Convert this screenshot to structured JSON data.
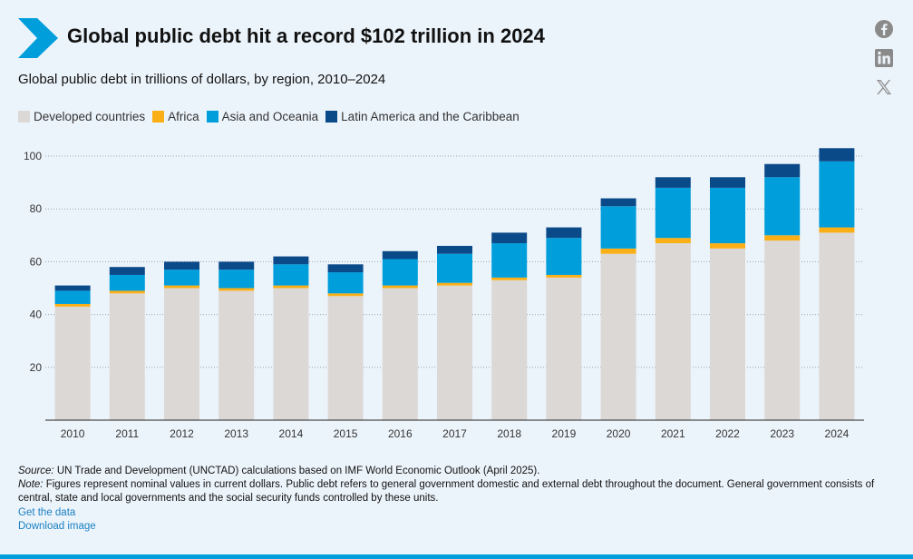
{
  "header": {
    "title": "Global public debt hit a record $102 trillion in 2024",
    "brand_color": "#009edb"
  },
  "social": [
    {
      "name": "facebook-icon"
    },
    {
      "name": "linkedin-icon"
    },
    {
      "name": "x-icon"
    }
  ],
  "chart_data": {
    "type": "bar",
    "stacked": true,
    "title": "",
    "subtitle": "Global public debt in trillions of dollars, by region, 2010–2024",
    "xlabel": "",
    "ylabel": "",
    "ylim": [
      0,
      105
    ],
    "yticks": [
      20,
      40,
      60,
      80,
      100
    ],
    "grid": "horizontal dotted",
    "legend_position": "top-left",
    "categories": [
      "2010",
      "2011",
      "2012",
      "2013",
      "2014",
      "2015",
      "2016",
      "2017",
      "2018",
      "2019",
      "2020",
      "2021",
      "2022",
      "2023",
      "2024"
    ],
    "series": [
      {
        "name": "Developed countries",
        "color": "#dcd8d5",
        "values": [
          43,
          48,
          50,
          49,
          50,
          47,
          50,
          51,
          53,
          54,
          63,
          67,
          65,
          68,
          71
        ]
      },
      {
        "name": "Africa",
        "color": "#fbaf17",
        "values": [
          1,
          1,
          1,
          1,
          1,
          1,
          1,
          1,
          1,
          1,
          2,
          2,
          2,
          2,
          2
        ]
      },
      {
        "name": "Asia and Oceania",
        "color": "#009edb",
        "values": [
          5,
          6,
          6,
          7,
          8,
          8,
          10,
          11,
          13,
          14,
          16,
          19,
          21,
          22,
          25
        ]
      },
      {
        "name": "Latin America and the Caribbean",
        "color": "#0b4a89",
        "values": [
          2,
          3,
          3,
          3,
          3,
          3,
          3,
          3,
          4,
          4,
          3,
          4,
          4,
          5,
          5
        ]
      }
    ]
  },
  "footer": {
    "source_label": "Source:",
    "source_text": " UN Trade and Development (UNCTAD) calculations based on IMF World Economic Outlook (April 2025).",
    "note_label": "Note:",
    "note_text": " Figures represent nominal values in current dollars. Public debt refers to general government domestic and external debt throughout the document. General government consists of central, state and local governments and the social security funds controlled by these units.",
    "get_data": "Get the data",
    "download": "Download image"
  }
}
